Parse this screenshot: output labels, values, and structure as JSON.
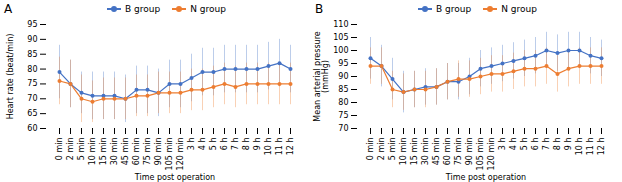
{
  "chart_data": [
    {
      "type": "line",
      "title": "A",
      "x_label": "Time post operation",
      "y_label": "Heart rate (beat/min)",
      "categories": [
        "0 min",
        "2 min",
        "5 min",
        "10 min",
        "15 min",
        "30 min",
        "45 min",
        "60 min",
        "75 min",
        "90 min",
        "105 min",
        "120 min",
        "3 h",
        "4 h",
        "5 h",
        "6 h",
        "7 h",
        "8 h",
        "9 h",
        "10 h",
        "11 h",
        "12 h"
      ],
      "series": [
        {
          "name": "B group",
          "color": "#4472c4",
          "marker": "o",
          "values": [
            79,
            75,
            72,
            71,
            71,
            71,
            70,
            73,
            73,
            72,
            75,
            75,
            77,
            79,
            79,
            80,
            80,
            80,
            80,
            81,
            82,
            80
          ],
          "errors": [
            9,
            8,
            7,
            8,
            8,
            8,
            8,
            8,
            8,
            8,
            8,
            8,
            8,
            8,
            8,
            8,
            8,
            8,
            8,
            8,
            8,
            8
          ]
        },
        {
          "name": "N group",
          "color": "#ed7d31",
          "marker": "o",
          "values": [
            76,
            75,
            70,
            69,
            70,
            70,
            70,
            71,
            71,
            72,
            72,
            72,
            73,
            73,
            74,
            75,
            74,
            75,
            75,
            75,
            75,
            75
          ],
          "errors": [
            8,
            8,
            8,
            7,
            7,
            7,
            7,
            7,
            7,
            7,
            7,
            7,
            7,
            7,
            7,
            7,
            7,
            7,
            7,
            7,
            7,
            7
          ]
        }
      ],
      "ylim": [
        60,
        95
      ],
      "yticks": [
        60,
        65,
        70,
        75,
        80,
        85,
        90,
        95
      ],
      "legend": "upper center"
    },
    {
      "type": "line",
      "title": "B",
      "x_label": "Time post operation",
      "y_label": "Mean arterial pressure\n(mmHg)",
      "categories": [
        "0 min",
        "2 min",
        "5 min",
        "10 min",
        "15 min",
        "30 min",
        "45 min",
        "60 min",
        "75 min",
        "90 min",
        "105 min",
        "120 min",
        "3 h",
        "4 h",
        "5 h",
        "6 h",
        "7 h",
        "8 h",
        "9 h",
        "10 h",
        "11 h",
        "12 h"
      ],
      "series": [
        {
          "name": "B group",
          "color": "#4472c4",
          "marker": "o",
          "values": [
            97,
            94,
            89,
            84,
            85,
            86,
            86,
            88,
            88,
            90,
            93,
            94,
            95,
            96,
            97,
            98,
            100,
            99,
            100,
            100,
            98,
            97
          ],
          "errors": [
            8,
            8,
            8,
            8,
            7,
            7,
            7,
            7,
            7,
            7,
            7,
            7,
            7,
            7,
            7,
            7,
            7,
            7,
            7,
            7,
            7,
            7
          ]
        },
        {
          "name": "N group",
          "color": "#ed7d31",
          "marker": "o",
          "values": [
            94,
            94,
            85,
            84,
            85,
            85,
            86,
            88,
            89,
            89,
            90,
            91,
            91,
            92,
            93,
            93,
            94,
            91,
            93,
            94,
            94,
            94
          ],
          "errors": [
            7,
            7,
            7,
            7,
            7,
            7,
            7,
            7,
            7,
            7,
            7,
            7,
            7,
            7,
            7,
            7,
            7,
            7,
            7,
            7,
            7,
            7
          ]
        }
      ],
      "ylim": [
        70,
        110
      ],
      "yticks": [
        70,
        75,
        80,
        85,
        90,
        95,
        100,
        105,
        110
      ],
      "legend": "upper center"
    }
  ]
}
